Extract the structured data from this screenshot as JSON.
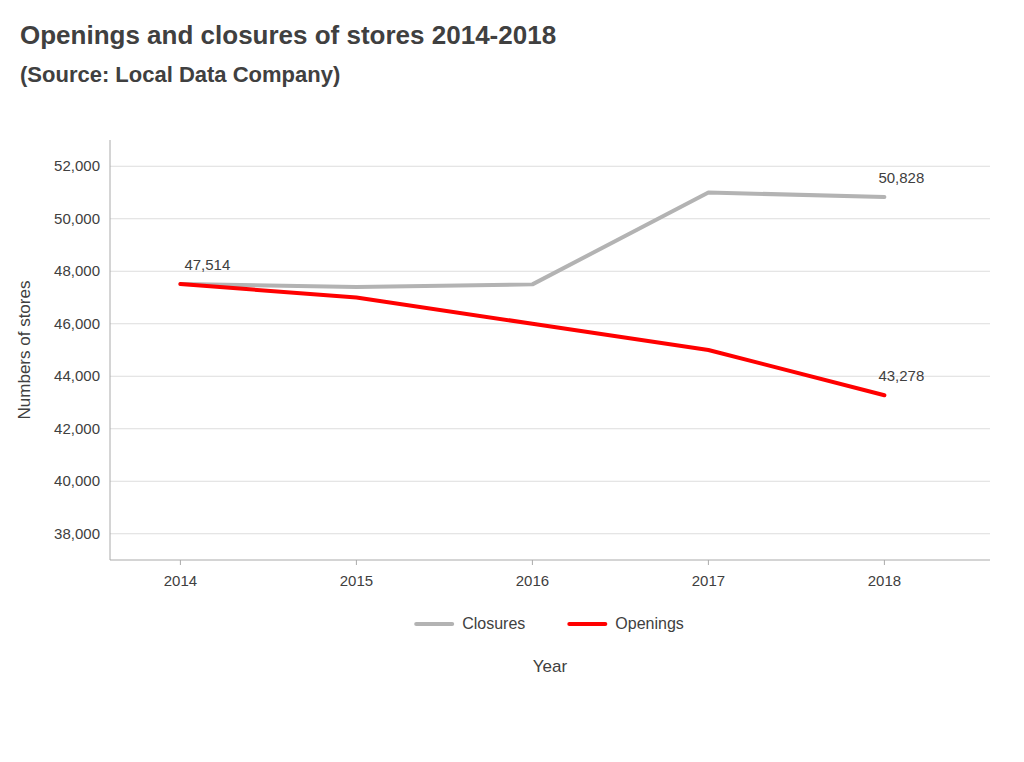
{
  "chart_data": {
    "type": "line",
    "title": "Openings and closures of stores 2014-2018",
    "subtitle": "(Source: Local Data Company)",
    "x": [
      2014,
      2015,
      2016,
      2017,
      2018
    ],
    "xlim": [
      2013.6,
      2018.6
    ],
    "xticks": [
      2014,
      2015,
      2016,
      2017,
      2018
    ],
    "series": [
      {
        "name": "Closures",
        "color": "#b3b3b3",
        "values": [
          47514,
          47400,
          47500,
          51000,
          50828
        ]
      },
      {
        "name": "Openings",
        "color": "#ff0000",
        "values": [
          47514,
          47000,
          46000,
          45000,
          43278
        ]
      }
    ],
    "ylim": [
      37000,
      53000
    ],
    "yticks": [
      {
        "value": 38000,
        "label": "38,000"
      },
      {
        "value": 40000,
        "label": "40,000"
      },
      {
        "value": 42000,
        "label": "42,000"
      },
      {
        "value": 44000,
        "label": "44,000"
      },
      {
        "value": 46000,
        "label": "46,000"
      },
      {
        "value": 48000,
        "label": "48,000"
      },
      {
        "value": 50000,
        "label": "50,000"
      },
      {
        "value": 52000,
        "label": "52,000"
      }
    ],
    "x_label": "Year",
    "y_label": "Numbers of stores",
    "annotations": [
      {
        "text": "47,514",
        "x": 2014,
        "y": 47514
      },
      {
        "text": "50,828",
        "x": 2018,
        "y": 50828
      },
      {
        "text": "43,278",
        "x": 2018,
        "y": 43278
      }
    ],
    "grid": true,
    "legend": "bottom"
  }
}
